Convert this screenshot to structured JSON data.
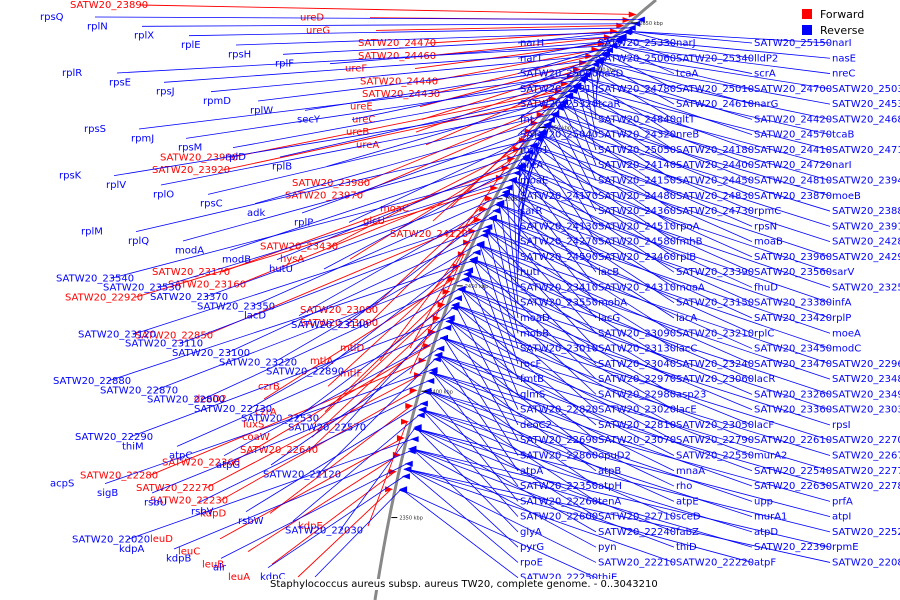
{
  "legend": {
    "forward": {
      "label": "Forward",
      "color": "#ff0000"
    },
    "reverse": {
      "label": "Reverse",
      "color": "#0000ff"
    }
  },
  "caption": "Staphylococcus aureus subsp. aureus TW20, complete genome. - 0..3043210",
  "ticks": [
    "2650 kbp",
    "2600 kbp",
    "2550 kbp",
    "2500 kbp",
    "2450 kbp",
    "2400 kbp",
    "2350 kbp"
  ],
  "forward_labels": [
    "SATW20_23890",
    "ureD",
    "ureG",
    "SATW20_24470",
    "SATW20_24460",
    "ureF",
    "SATW20_24440",
    "SATW20_24430",
    "ureE",
    "ureC",
    "ureB",
    "ureA",
    "SATW20_23930",
    "SATW20_23920",
    "SATW20_23980",
    "SATW20_23970",
    "moaC",
    "glcU",
    "SATW20_24120",
    "SATW20_23430",
    "hysA",
    "SATW20_23170",
    "SATW20_23160",
    "SATW20_22920",
    "SATW20_23080",
    "SATW20_23000",
    "SATW20_22850",
    "mtlD",
    "mtlA",
    "mtlF",
    "czrB",
    "deoD2",
    "czrA",
    "luxS",
    "coaW",
    "SATW20_22640",
    "SATW20_22360",
    "SATW20_22280",
    "SATW20_22270",
    "SATW20_22230",
    "kdpD",
    "kdpE",
    "leuD",
    "leuC",
    "leuB",
    "leuA"
  ],
  "reverse_labels": [
    "rpsQ",
    "rplN",
    "rplX",
    "rplE",
    "rpsH",
    "rplF",
    "rplR",
    "rpsE",
    "rpsJ",
    "rpmD",
    "rplW",
    "secY",
    "rpsS",
    "rpmJ",
    "rpsM",
    "rplD",
    "rplB",
    "rpsK",
    "rplV",
    "rplO",
    "rpsC",
    "adk",
    "rplP",
    "rplM",
    "rplQ",
    "modA",
    "modB",
    "hutU",
    "SATW20_23540",
    "SATW20_23530",
    "SATW20_23370",
    "SATW20_23350",
    "lacD",
    "SATW20_23140",
    "SATW20_23120",
    "SATW20_23110",
    "SATW20_23100",
    "SATW20_23220",
    "SATW20_22890",
    "SATW20_22880",
    "SATW20_22870",
    "SATW20_22800",
    "SATW20_22730",
    "SATW20_22530",
    "SATW20_22570",
    "SATW20_22290",
    "thiM",
    "atpC",
    "atpG",
    "SATW20_22120",
    "acpS",
    "sigB",
    "rsbU",
    "rsbV",
    "rsbW",
    "SATW20_22030",
    "SATW20_22020",
    "kdpA",
    "kdpB",
    "alr",
    "kdpC",
    "narH",
    "SATW20_25330",
    "narJ",
    "SATW20_25150",
    "narI",
    "narT",
    "SATW20_25060",
    "SATW20_25340",
    "lldP2",
    "nasE",
    "SATW20_25000",
    "nasD",
    "tcaA",
    "scrA",
    "nreC",
    "SATW20_25310",
    "SATW20_24780",
    "SATW20_25010",
    "SATW20_24700",
    "SATW20_25030",
    "SATW20_25320",
    "tcaR",
    "SATW20_24610",
    "narG",
    "SATW20_24530",
    "fnt",
    "SATW20_24840",
    "gltT",
    "SATW20_24420",
    "SATW20_24680",
    "SATW20_25040",
    "SATW20_24320",
    "nreB",
    "SATW20_24570",
    "tcaB",
    "mqo1",
    "SATW20_25050",
    "SATW20_24180",
    "SATW20_24410",
    "SATW20_24710",
    "nreA",
    "SATW20_24140",
    "SATW20_24400",
    "SATW20_24720",
    "narI",
    "moaE",
    "SATW20_24150",
    "SATW20_24450",
    "SATW20_24810",
    "SATW20_23940",
    "SATW20_24170",
    "SATW20_24480",
    "SATW20_24830",
    "SATW20_23870",
    "moeB",
    "sarR",
    "SATW20_24360",
    "SATW20_24730",
    "rpmC",
    "SATW20_23880",
    "SATW20_24130",
    "SATW20_24510",
    "rpoA",
    "rpsN",
    "SATW20_23910",
    "SATW20_24270",
    "SATW20_24580",
    "fmhB",
    "moaB",
    "SATW20_24280",
    "SATW20_24590",
    "SATW20_23460",
    "rplB",
    "SATW20_23960",
    "SATW20_24290",
    "hutI",
    "lacB",
    "SATW20_23390",
    "SATW20_23560",
    "sarV",
    "SATW20_23410",
    "SATW20_24310",
    "moaA",
    "fhuD",
    "SATW20_23250",
    "SATW20_23550",
    "mobA",
    "SATW20_23150",
    "SATW20_23380",
    "infA",
    "moaD",
    "lacG",
    "lacA",
    "SATW20_23420",
    "rplP",
    "mobB",
    "SATW20_23090",
    "SATW20_23210",
    "rplC",
    "moeA",
    "SATW20_23010",
    "SATW20_23130",
    "lacC",
    "SATW20_23450",
    "modC",
    "rocF",
    "SATW20_23040",
    "SATW20_23240",
    "SATW20_23470",
    "SATW20_22960",
    "fmtB",
    "SATW20_22970",
    "SATW20_23060",
    "lacR",
    "SATW20_23480",
    "glmS",
    "SATW20_22980",
    "asp23",
    "SATW20_23260",
    "SATW20_23490",
    "SATW20_22820",
    "SATW20_23020",
    "lacE",
    "SATW20_23360",
    "SATW20_23030",
    "deoC2",
    "SATW20_22810",
    "SATW20_23050",
    "lacF",
    "rpsI",
    "SATW20_22690",
    "SATW20_23070",
    "SATW20_22790",
    "SATW20_22610",
    "SATW20_22700",
    "SATW20_22860",
    "opuD2",
    "SATW20_22550",
    "murA2",
    "SATW20_22670",
    "atpA",
    "atpB",
    "mnaA",
    "SATW20_22540",
    "SATW20_22770",
    "SATW20_22350",
    "atpH",
    "rho",
    "SATW20_22630",
    "SATW20_22780",
    "SATW20_22260",
    "tenA",
    "atpE",
    "upp",
    "prfA",
    "SATW20_22600",
    "SATW20_22710",
    "sceD",
    "murA1",
    "atpI",
    "glyA",
    "SATW20_22240",
    "fabZ",
    "atpD",
    "SATW20_22520",
    "pyrG",
    "pyn",
    "thiD",
    "SATW20_22390",
    "rpmE",
    "rpoE",
    "SATW20_22210",
    "SATW20_22220",
    "atpF",
    "SATW20_22080",
    "SATW20_22250",
    "thiE"
  ]
}
